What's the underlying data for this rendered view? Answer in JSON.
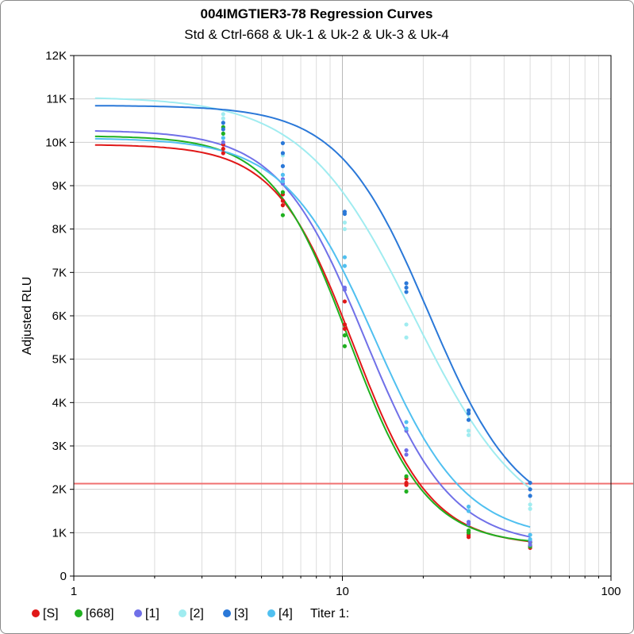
{
  "chart_data": {
    "type": "scatter",
    "title": "004IMGTIER3-78 Regression Curves",
    "subtitle": "Std & Ctrl-668 & Uk-1 & Uk-2 & Uk-3 & Uk-4",
    "xlabel": "",
    "ylabel": "Adjusted RLU",
    "xscale": "log",
    "xlim": [
      1,
      100
    ],
    "ylim": [
      0,
      12000
    ],
    "x_ticks": [
      1,
      10,
      100
    ],
    "x_tick_labels": [
      "1",
      "10",
      "100"
    ],
    "y_ticks": [
      0,
      1000,
      2000,
      3000,
      4000,
      5000,
      6000,
      7000,
      8000,
      9000,
      10000,
      11000,
      12000
    ],
    "y_tick_labels": [
      "0",
      "1K",
      "2K",
      "3K",
      "4K",
      "5K",
      "6K",
      "7K",
      "8K",
      "9K",
      "10K",
      "11K",
      "12K"
    ],
    "grid": true,
    "legend_position": "bottom",
    "threshold_line": {
      "y": 2130,
      "color": "#f07070"
    },
    "titer_label": "Titer 1:",
    "series": [
      {
        "name": "[S]",
        "color": "#e01818",
        "curve": {
          "top": 9950,
          "bottom": 700,
          "ec50": 11.0,
          "hill": 3.0,
          "x_start": 1.2,
          "x_end": 50
        },
        "points": [
          [
            3.6,
            9750
          ],
          [
            3.6,
            9850
          ],
          [
            3.6,
            9950
          ],
          [
            6,
            8550
          ],
          [
            6,
            8650
          ],
          [
            6,
            8800
          ],
          [
            10.2,
            5700
          ],
          [
            10.2,
            5800
          ],
          [
            10.2,
            6330
          ],
          [
            17.3,
            2100
          ],
          [
            17.3,
            2150
          ],
          [
            17.3,
            2250
          ],
          [
            29.5,
            900
          ],
          [
            29.5,
            950
          ],
          [
            29.5,
            1000
          ],
          [
            50,
            650
          ],
          [
            50,
            700
          ],
          [
            50,
            780
          ]
        ]
      },
      {
        "name": "[668]",
        "color": "#20b020",
        "curve": {
          "top": 10150,
          "bottom": 720,
          "ec50": 10.6,
          "hill": 3.0,
          "x_start": 1.2,
          "x_end": 50
        },
        "points": [
          [
            3.6,
            10200
          ],
          [
            3.6,
            10350
          ],
          [
            6,
            8320
          ],
          [
            6,
            8850
          ],
          [
            10.2,
            5300
          ],
          [
            10.2,
            5550
          ],
          [
            17.3,
            1950
          ],
          [
            17.3,
            2300
          ],
          [
            29.5,
            1000
          ],
          [
            29.5,
            1050
          ],
          [
            50,
            680
          ],
          [
            50,
            780
          ]
        ]
      },
      {
        "name": "[1]",
        "color": "#7070e8",
        "curve": {
          "top": 10280,
          "bottom": 700,
          "ec50": 12.1,
          "hill": 2.7,
          "x_start": 1.2,
          "x_end": 50
        },
        "points": [
          [
            3.6,
            10000
          ],
          [
            6,
            9050
          ],
          [
            6,
            9150
          ],
          [
            10.2,
            6600
          ],
          [
            10.2,
            6650
          ],
          [
            17.3,
            2800
          ],
          [
            17.3,
            2900
          ],
          [
            17.3,
            3350
          ],
          [
            29.5,
            1200
          ],
          [
            29.5,
            1250
          ],
          [
            50,
            720
          ],
          [
            50,
            800
          ]
        ]
      },
      {
        "name": "[2]",
        "color": "#a0ecf0",
        "curve": {
          "top": 11050,
          "bottom": 900,
          "ec50": 18.5,
          "hill": 2.1,
          "x_start": 1.2,
          "x_end": 50
        },
        "points": [
          [
            3.6,
            10550
          ],
          [
            3.6,
            10650
          ],
          [
            6,
            9700
          ],
          [
            10.2,
            8000
          ],
          [
            10.2,
            8150
          ],
          [
            17.3,
            5500
          ],
          [
            17.3,
            5800
          ],
          [
            29.5,
            3250
          ],
          [
            29.5,
            3350
          ],
          [
            50,
            1550
          ],
          [
            50,
            1650
          ]
        ]
      },
      {
        "name": "[3]",
        "color": "#2a78d8",
        "curve": {
          "top": 10850,
          "bottom": 1250,
          "ec50": 21.0,
          "hill": 2.6,
          "x_start": 1.2,
          "x_end": 50
        },
        "points": [
          [
            3.6,
            10300
          ],
          [
            3.6,
            10450
          ],
          [
            6,
            9450
          ],
          [
            6,
            9750
          ],
          [
            6,
            9980
          ],
          [
            10.2,
            8350
          ],
          [
            10.2,
            8400
          ],
          [
            17.3,
            6550
          ],
          [
            17.3,
            6650
          ],
          [
            17.3,
            6750
          ],
          [
            29.5,
            3600
          ],
          [
            29.5,
            3750
          ],
          [
            29.5,
            3820
          ],
          [
            50,
            1850
          ],
          [
            50,
            2000
          ],
          [
            50,
            2150
          ]
        ]
      },
      {
        "name": "[4]",
        "color": "#50c0f0",
        "curve": {
          "top": 10100,
          "bottom": 850,
          "ec50": 13.2,
          "hill": 2.6,
          "x_start": 1.2,
          "x_end": 50
        },
        "points": [
          [
            3.6,
            10100
          ],
          [
            6,
            9100
          ],
          [
            6,
            9250
          ],
          [
            10.2,
            7150
          ],
          [
            10.2,
            7350
          ],
          [
            17.3,
            3400
          ],
          [
            17.3,
            3550
          ],
          [
            29.5,
            1500
          ],
          [
            29.5,
            1600
          ],
          [
            50,
            850
          ],
          [
            50,
            950
          ]
        ]
      }
    ]
  }
}
